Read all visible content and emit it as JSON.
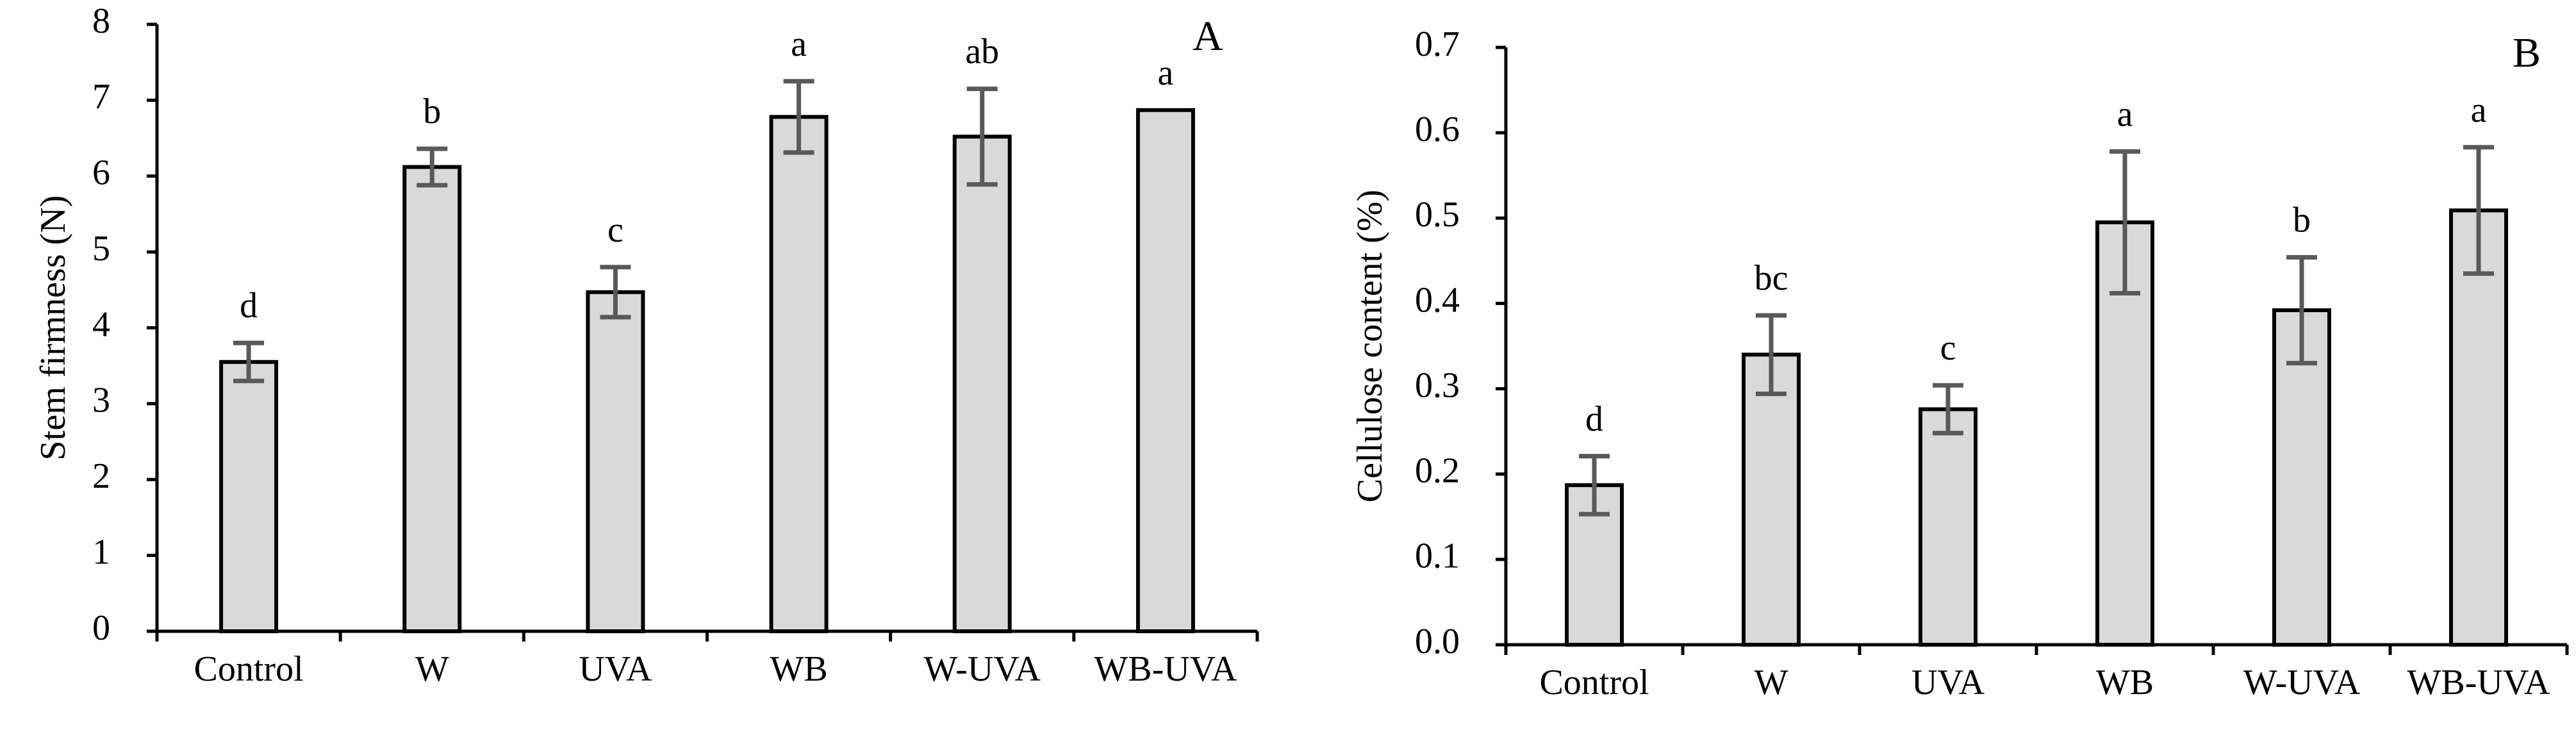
{
  "chart_data": [
    {
      "type": "bar",
      "panel_label": "A",
      "title": "",
      "xlabel": "",
      "ylabel": "Stem firmness (N)",
      "categories": [
        "Control",
        "W",
        "UVA",
        "WB",
        "W-UVA",
        "WB-UVA"
      ],
      "values": [
        3.55,
        6.12,
        4.47,
        6.78,
        6.52,
        6.87
      ],
      "errors": [
        0.25,
        0.24,
        0.33,
        0.47,
        0.63,
        0
      ],
      "significance": [
        "d",
        "b",
        "c",
        "a",
        "ab",
        "a"
      ],
      "ylim": [
        0,
        8
      ],
      "yticks": [
        "0",
        "1",
        "2",
        "3",
        "4",
        "5",
        "6",
        "7",
        "8"
      ],
      "grid": false,
      "legend": "none"
    },
    {
      "type": "bar",
      "panel_label": "B",
      "title": "",
      "xlabel": "",
      "ylabel": "Cellulose content (%)",
      "categories": [
        "Control",
        "W",
        "UVA",
        "WB",
        "W-UVA",
        "WB-UVA"
      ],
      "values": [
        0.187,
        0.34,
        0.276,
        0.495,
        0.392,
        0.509
      ],
      "errors": [
        0.034,
        0.046,
        0.028,
        0.083,
        0.062,
        0.074
      ],
      "significance": [
        "d",
        "bc",
        "c",
        "a",
        "b",
        "a"
      ],
      "ylim": [
        0,
        0.7
      ],
      "yticks": [
        "0.0",
        "0.1",
        "0.2",
        "0.3",
        "0.4",
        "0.5",
        "0.6",
        "0.7"
      ],
      "grid": false,
      "legend": "none"
    }
  ]
}
